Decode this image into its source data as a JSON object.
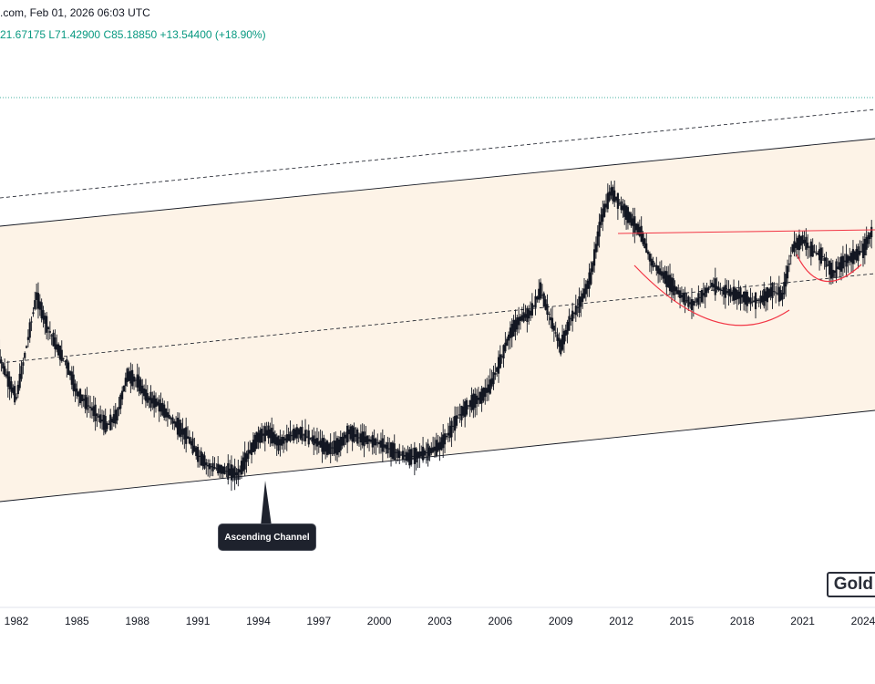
{
  "header": {
    "source_and_date": ".com, Feb 01, 2026 06:03 UTC",
    "ohlc_change": "21.67175  L71.42900  C85.18850  +13.54400 (+18.90%)"
  },
  "watermark": "Gold",
  "annotation": {
    "callout_label": "Ascending Channel"
  },
  "colors": {
    "channel_fill": "#fdf3e7",
    "channel_line": "#131722",
    "candle": "#131722",
    "cup_arc": "#f23645",
    "resistance_line": "#f23645",
    "dotted_top": "#089981"
  },
  "chart_data": {
    "type": "candlestick",
    "x_axis": {
      "tick_labels": [
        "1982",
        "1985",
        "1988",
        "1991",
        "1994",
        "1997",
        "2000",
        "2003",
        "2006",
        "2009",
        "2012",
        "2015",
        "2018",
        "2021",
        "2024"
      ]
    },
    "series": [
      {
        "name": "",
        "points": [
          {
            "x": 1981.0,
            "y": 0.9
          },
          {
            "x": 1981.5,
            "y": 0.8
          },
          {
            "x": 1982.0,
            "y": 0.72
          },
          {
            "x": 1982.5,
            "y": 0.9
          },
          {
            "x": 1983.0,
            "y": 1.08
          },
          {
            "x": 1983.5,
            "y": 0.98
          },
          {
            "x": 1984.0,
            "y": 0.9
          },
          {
            "x": 1984.5,
            "y": 0.84
          },
          {
            "x": 1985.0,
            "y": 0.74
          },
          {
            "x": 1985.5,
            "y": 0.7
          },
          {
            "x": 1986.0,
            "y": 0.66
          },
          {
            "x": 1986.5,
            "y": 0.62
          },
          {
            "x": 1987.0,
            "y": 0.66
          },
          {
            "x": 1987.5,
            "y": 0.8
          },
          {
            "x": 1988.0,
            "y": 0.78
          },
          {
            "x": 1988.5,
            "y": 0.72
          },
          {
            "x": 1989.0,
            "y": 0.7
          },
          {
            "x": 1989.5,
            "y": 0.66
          },
          {
            "x": 1990.0,
            "y": 0.62
          },
          {
            "x": 1990.5,
            "y": 0.58
          },
          {
            "x": 1991.0,
            "y": 0.52
          },
          {
            "x": 1991.5,
            "y": 0.48
          },
          {
            "x": 1992.0,
            "y": 0.47
          },
          {
            "x": 1992.5,
            "y": 0.46
          },
          {
            "x": 1993.0,
            "y": 0.45
          },
          {
            "x": 1993.5,
            "y": 0.52
          },
          {
            "x": 1994.0,
            "y": 0.58
          },
          {
            "x": 1994.5,
            "y": 0.6
          },
          {
            "x": 1995.0,
            "y": 0.56
          },
          {
            "x": 1995.5,
            "y": 0.58
          },
          {
            "x": 1996.0,
            "y": 0.6
          },
          {
            "x": 1996.5,
            "y": 0.58
          },
          {
            "x": 1997.0,
            "y": 0.56
          },
          {
            "x": 1997.5,
            "y": 0.54
          },
          {
            "x": 1998.0,
            "y": 0.55
          },
          {
            "x": 1998.5,
            "y": 0.6
          },
          {
            "x": 1999.0,
            "y": 0.58
          },
          {
            "x": 1999.5,
            "y": 0.57
          },
          {
            "x": 2000.0,
            "y": 0.56
          },
          {
            "x": 2000.5,
            "y": 0.54
          },
          {
            "x": 2001.0,
            "y": 0.52
          },
          {
            "x": 2001.5,
            "y": 0.51
          },
          {
            "x": 2002.0,
            "y": 0.52
          },
          {
            "x": 2002.5,
            "y": 0.53
          },
          {
            "x": 2003.0,
            "y": 0.55
          },
          {
            "x": 2003.5,
            "y": 0.6
          },
          {
            "x": 2004.0,
            "y": 0.66
          },
          {
            "x": 2004.5,
            "y": 0.7
          },
          {
            "x": 2005.0,
            "y": 0.72
          },
          {
            "x": 2005.5,
            "y": 0.76
          },
          {
            "x": 2006.0,
            "y": 0.85
          },
          {
            "x": 2006.5,
            "y": 0.95
          },
          {
            "x": 2007.0,
            "y": 1.0
          },
          {
            "x": 2007.5,
            "y": 1.02
          },
          {
            "x": 2008.0,
            "y": 1.1
          },
          {
            "x": 2008.5,
            "y": 1.0
          },
          {
            "x": 2009.0,
            "y": 0.9
          },
          {
            "x": 2009.5,
            "y": 1.0
          },
          {
            "x": 2010.0,
            "y": 1.06
          },
          {
            "x": 2010.5,
            "y": 1.15
          },
          {
            "x": 2011.0,
            "y": 1.35
          },
          {
            "x": 2011.5,
            "y": 1.45
          },
          {
            "x": 2012.0,
            "y": 1.4
          },
          {
            "x": 2012.5,
            "y": 1.35
          },
          {
            "x": 2013.0,
            "y": 1.3
          },
          {
            "x": 2013.5,
            "y": 1.2
          },
          {
            "x": 2014.0,
            "y": 1.16
          },
          {
            "x": 2014.5,
            "y": 1.12
          },
          {
            "x": 2015.0,
            "y": 1.08
          },
          {
            "x": 2015.5,
            "y": 1.05
          },
          {
            "x": 2016.0,
            "y": 1.08
          },
          {
            "x": 2016.5,
            "y": 1.12
          },
          {
            "x": 2017.0,
            "y": 1.1
          },
          {
            "x": 2017.5,
            "y": 1.09
          },
          {
            "x": 2018.0,
            "y": 1.08
          },
          {
            "x": 2018.5,
            "y": 1.06
          },
          {
            "x": 2019.0,
            "y": 1.07
          },
          {
            "x": 2019.5,
            "y": 1.1
          },
          {
            "x": 2020.0,
            "y": 1.08
          },
          {
            "x": 2020.5,
            "y": 1.25
          },
          {
            "x": 2021.0,
            "y": 1.28
          },
          {
            "x": 2021.5,
            "y": 1.24
          },
          {
            "x": 2022.0,
            "y": 1.22
          },
          {
            "x": 2022.5,
            "y": 1.16
          },
          {
            "x": 2023.0,
            "y": 1.2
          },
          {
            "x": 2023.5,
            "y": 1.22
          },
          {
            "x": 2024.0,
            "y": 1.24
          },
          {
            "x": 2024.5,
            "y": 1.32
          }
        ]
      }
    ],
    "drawings": [
      "ascending channel",
      "dashed mid-line",
      "dashed upper projection",
      "cup-shaped arc",
      "horizontal resistance line"
    ]
  }
}
